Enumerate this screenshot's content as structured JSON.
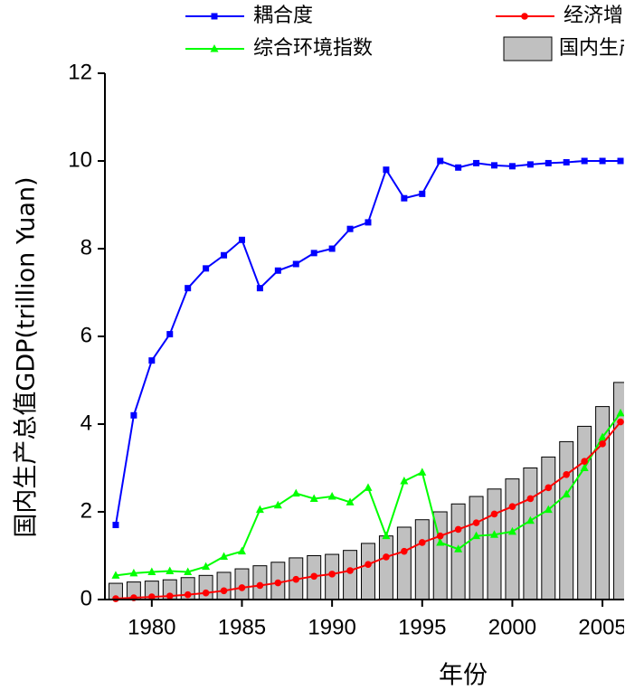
{
  "chart_data": {
    "type": "combo",
    "x_label": "年份",
    "y_label": "国内生产总值GDP(trillion Yuan)",
    "x": [
      1978,
      1979,
      1980,
      1981,
      1982,
      1983,
      1984,
      1985,
      1986,
      1987,
      1988,
      1989,
      1990,
      1991,
      1992,
      1993,
      1994,
      1995,
      1996,
      1997,
      1998,
      1999,
      2000,
      2001,
      2002,
      2003,
      2004,
      2005,
      2006
    ],
    "xlim": [
      1977.4,
      2006.3
    ],
    "xticks": [
      1980,
      1985,
      1990,
      1995,
      2000,
      2005
    ],
    "ylim": [
      0,
      12
    ],
    "yticks": [
      0,
      2,
      4,
      6,
      8,
      10,
      12
    ],
    "series": [
      {
        "name": "国内生产总值",
        "type": "bar",
        "color": "#c0c0c0",
        "values": [
          0.37,
          0.4,
          0.42,
          0.45,
          0.5,
          0.55,
          0.62,
          0.7,
          0.77,
          0.85,
          0.95,
          1.0,
          1.03,
          1.12,
          1.28,
          1.45,
          1.65,
          1.82,
          2.0,
          2.18,
          2.35,
          2.52,
          2.75,
          3.0,
          3.25,
          3.6,
          3.95,
          4.4,
          4.95
        ]
      },
      {
        "name": "耦合度",
        "type": "line",
        "marker": "square",
        "color": "#0000ff",
        "values": [
          1.7,
          4.2,
          5.45,
          6.05,
          7.1,
          7.55,
          7.85,
          8.2,
          7.1,
          7.5,
          7.65,
          7.9,
          8.0,
          8.45,
          8.6,
          9.8,
          9.15,
          9.25,
          10.0,
          9.85,
          9.95,
          9.9,
          9.88,
          9.92,
          9.95,
          9.97,
          10.0,
          10.0,
          10.0
        ]
      },
      {
        "name": "综合环境指数",
        "type": "line",
        "marker": "triangle",
        "color": "#00ff00",
        "values": [
          0.55,
          0.6,
          0.63,
          0.65,
          0.63,
          0.75,
          0.98,
          1.1,
          2.05,
          2.15,
          2.42,
          2.3,
          2.35,
          2.22,
          2.55,
          1.45,
          2.7,
          2.9,
          1.3,
          1.15,
          1.45,
          1.48,
          1.55,
          1.8,
          2.05,
          2.4,
          3.0,
          3.7,
          4.25
        ]
      },
      {
        "name": "经济增长指数",
        "type": "line",
        "marker": "circle",
        "color": "#ff0000",
        "values": [
          0.02,
          0.04,
          0.06,
          0.08,
          0.11,
          0.15,
          0.2,
          0.27,
          0.32,
          0.38,
          0.46,
          0.53,
          0.58,
          0.66,
          0.8,
          0.97,
          1.1,
          1.3,
          1.45,
          1.6,
          1.75,
          1.95,
          2.12,
          2.3,
          2.55,
          2.85,
          3.15,
          3.55,
          4.05
        ]
      }
    ]
  }
}
